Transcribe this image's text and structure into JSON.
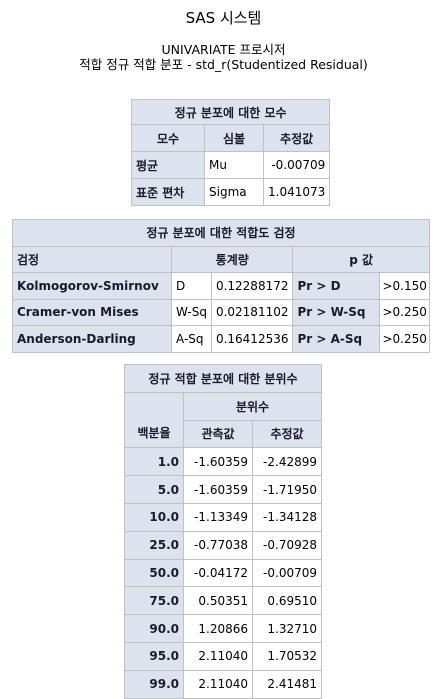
{
  "header": {
    "system_title": "SAS 시스템",
    "proc_title": "UNIVARIATE 프로시저",
    "subtitle": "적합 정규 적합 분포 - std_r(Studentized Residual)"
  },
  "param_table": {
    "caption": "정규 분포에 대한 모수",
    "headers": [
      "모수",
      "심볼",
      "추정값"
    ],
    "rows": [
      {
        "label": "평균",
        "symbol": "Mu",
        "estimate": "-0.00709"
      },
      {
        "label": "표준 편차",
        "symbol": "Sigma",
        "estimate": "1.041073"
      }
    ]
  },
  "gof_table": {
    "caption": "정규 분포에 대한 적합도 검정",
    "headers": [
      "검정",
      "통계량",
      "p 값"
    ],
    "rows": [
      {
        "test": "Kolmogorov-Smirnov",
        "stat_name": "D",
        "stat_value": "0.12288172",
        "p_name": "Pr > D",
        "p_value": ">0.150"
      },
      {
        "test": "Cramer-von Mises",
        "stat_name": "W-Sq",
        "stat_value": "0.02181102",
        "p_name": "Pr > W-Sq",
        "p_value": ">0.250"
      },
      {
        "test": "Anderson-Darling",
        "stat_name": "A-Sq",
        "stat_value": "0.16412536",
        "p_name": "Pr > A-Sq",
        "p_value": ">0.250"
      }
    ]
  },
  "quantile_table": {
    "caption": "정규 적합 분포에 대한 분위수",
    "group_header": "분위수",
    "col_percent": "백분율",
    "col_observed": "관측값",
    "col_expected": "추정값",
    "rows": [
      {
        "percent": "1.0",
        "observed": "-1.60359",
        "expected": "-2.42899"
      },
      {
        "percent": "5.0",
        "observed": "-1.60359",
        "expected": "-1.71950"
      },
      {
        "percent": "10.0",
        "observed": "-1.13349",
        "expected": "-1.34128"
      },
      {
        "percent": "25.0",
        "observed": "-0.77038",
        "expected": "-0.70928"
      },
      {
        "percent": "50.0",
        "observed": "-0.04172",
        "expected": "-0.00709"
      },
      {
        "percent": "75.0",
        "observed": "0.50351",
        "expected": "0.69510"
      },
      {
        "percent": "90.0",
        "observed": "1.20866",
        "expected": "1.32710"
      },
      {
        "percent": "95.0",
        "observed": "2.11040",
        "expected": "1.70532"
      },
      {
        "percent": "99.0",
        "observed": "2.11040",
        "expected": "2.41481"
      }
    ]
  }
}
